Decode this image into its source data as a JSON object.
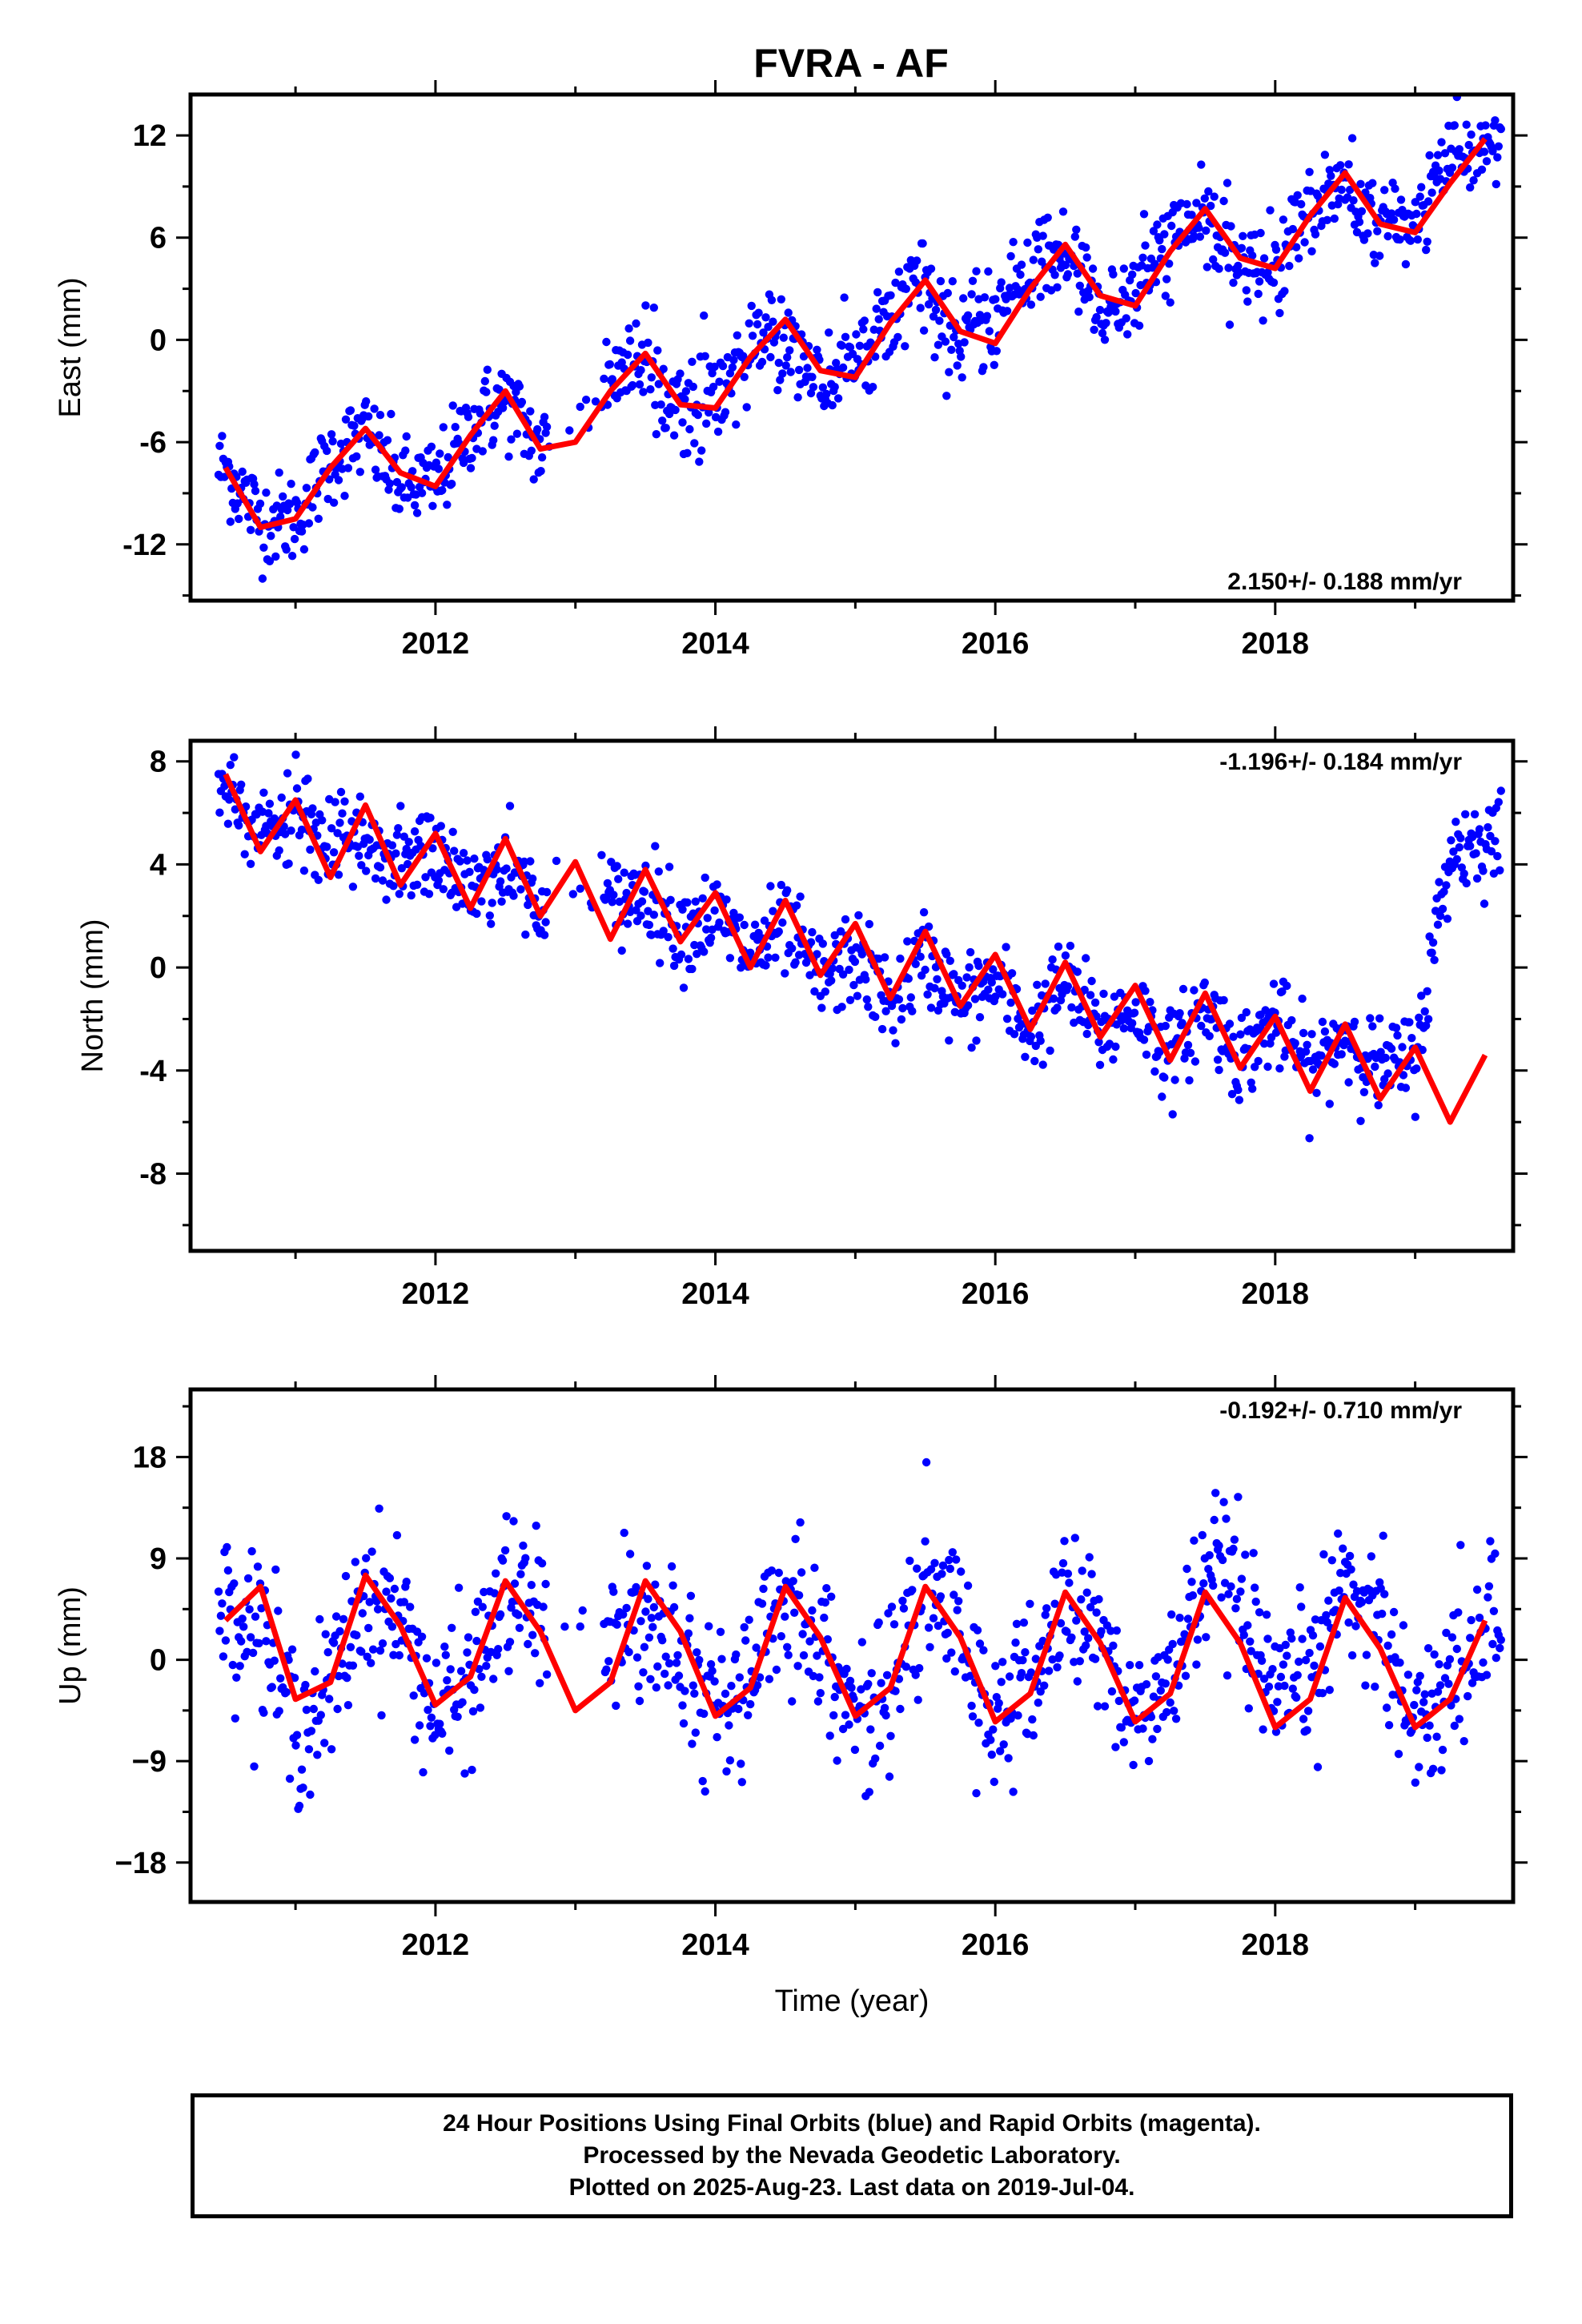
{
  "title": "FVRA - AF",
  "footer": {
    "line1": "24 Hour Positions Using Final Orbits (blue) and Rapid Orbits (magenta).",
    "line2": "Processed by the Nevada Geodetic Laboratory.",
    "line3": "Plotted on 2025-Aug-23. Last data on 2019-Jul-04."
  },
  "colors": {
    "data_points": "#0000ff",
    "model_fit": "#ff0000",
    "frame": "#000000"
  },
  "chart_data": [
    {
      "type": "scatter",
      "title": "FVRA - AF",
      "ylabel": "East (mm)",
      "xlabel": "",
      "xlim": [
        2010.25,
        2019.7
      ],
      "ylim": [
        -15.3,
        14.4
      ],
      "xticks": [
        2012,
        2014,
        2016,
        2018
      ],
      "yticks": [
        -12,
        -6,
        0,
        6,
        12
      ],
      "ytick_labels": [
        "-12",
        "-6",
        "0",
        "6",
        "12"
      ],
      "rate": "2.150+/- 0.188 mm/yr",
      "rate_position": "bottom-right",
      "series": [
        {
          "color": "#0000ff",
          "marker": "dot",
          "x": [
            2010.5,
            2010.75,
            2011.0,
            2011.25,
            2011.5,
            2011.75,
            2012.0,
            2012.25,
            2012.5,
            2012.75,
            2013.3,
            2013.5,
            2013.75,
            2014.0,
            2014.25,
            2014.5,
            2014.75,
            2015.0,
            2015.25,
            2015.5,
            2015.75,
            2016.0,
            2016.25,
            2016.5,
            2016.75,
            2017.0,
            2017.25,
            2017.5,
            2017.75,
            2018.0,
            2018.25,
            2018.5,
            2018.75,
            2019.0,
            2019.25,
            2019.5
          ],
          "y": [
            -7.5,
            -10.5,
            -10.5,
            -7.0,
            -5.5,
            -8.5,
            -8.5,
            -5.0,
            -3.5,
            -6.5,
            -2.0,
            -1.5,
            -4.0,
            -3.5,
            -0.5,
            0.5,
            -2.5,
            -1.5,
            2.0,
            3.0,
            0.0,
            1.0,
            4.5,
            5.0,
            2.0,
            2.5,
            6.0,
            7.0,
            4.0,
            4.5,
            8.0,
            9.0,
            6.5,
            7.0,
            10.5,
            11.5
          ]
        },
        {
          "color": "#ff0000",
          "marker": "line",
          "x": [
            2010.5,
            2010.75,
            2011.0,
            2011.25,
            2011.5,
            2011.75,
            2012.0,
            2012.25,
            2012.5,
            2012.75,
            2013.0,
            2013.25,
            2013.5,
            2013.75,
            2014.0,
            2014.25,
            2014.5,
            2014.75,
            2015.0,
            2015.25,
            2015.5,
            2015.75,
            2016.0,
            2016.25,
            2016.5,
            2016.75,
            2017.0,
            2017.25,
            2017.5,
            2017.75,
            2018.0,
            2018.25,
            2018.5,
            2018.75,
            2019.0,
            2019.25,
            2019.5
          ],
          "y": [
            -7.5,
            -11.0,
            -10.5,
            -7.5,
            -5.2,
            -7.8,
            -8.6,
            -5.6,
            -3.0,
            -6.4,
            -6.0,
            -3.0,
            -0.8,
            -3.8,
            -4.0,
            -1.0,
            1.2,
            -1.8,
            -2.2,
            1.0,
            3.5,
            0.5,
            -0.2,
            3.0,
            5.6,
            2.6,
            2.0,
            5.2,
            7.7,
            4.8,
            4.2,
            7.3,
            9.8,
            6.8,
            6.3,
            9.2,
            11.8
          ]
        }
      ]
    },
    {
      "type": "scatter",
      "ylabel": "North (mm)",
      "xlabel": "",
      "xlim": [
        2010.25,
        2019.7
      ],
      "ylim": [
        -11.0,
        8.8
      ],
      "xticks": [
        2012,
        2014,
        2016,
        2018
      ],
      "yticks": [
        -8,
        -4,
        0,
        4,
        8
      ],
      "ytick_labels": [
        "-8",
        "-4",
        "0",
        "4",
        "8"
      ],
      "rate": "-1.196+/- 0.184 mm/yr",
      "rate_position": "top-right",
      "series": [
        {
          "color": "#0000ff",
          "marker": "dot",
          "x": [
            2010.5,
            2010.75,
            2011.0,
            2011.25,
            2011.5,
            2011.75,
            2012.0,
            2012.25,
            2012.5,
            2012.75,
            2013.3,
            2013.5,
            2013.75,
            2014.0,
            2014.25,
            2014.5,
            2014.75,
            2015.0,
            2015.25,
            2015.5,
            2015.75,
            2016.0,
            2016.25,
            2016.5,
            2016.75,
            2017.0,
            2017.25,
            2017.5,
            2017.75,
            2018.0,
            2018.25,
            2018.5,
            2018.75,
            2019.0,
            2019.25,
            2019.5
          ],
          "y": [
            7.0,
            5.0,
            6.0,
            4.5,
            5.0,
            4.0,
            4.5,
            3.0,
            4.0,
            2.5,
            2.5,
            3.0,
            1.5,
            2.0,
            0.5,
            1.5,
            -0.5,
            0.5,
            -1.5,
            0.5,
            -1.5,
            -0.5,
            -2.5,
            -0.5,
            -2.5,
            -1.5,
            -3.5,
            -1.5,
            -3.5,
            -2.0,
            -4.0,
            -2.5,
            -4.0,
            -3.5,
            4.5,
            5.0
          ]
        },
        {
          "color": "#ff0000",
          "marker": "line",
          "x": [
            2010.5,
            2010.75,
            2011.0,
            2011.25,
            2011.5,
            2011.75,
            2012.0,
            2012.25,
            2012.5,
            2012.75,
            2013.0,
            2013.25,
            2013.5,
            2013.75,
            2014.0,
            2014.25,
            2014.5,
            2014.75,
            2015.0,
            2015.25,
            2015.5,
            2015.75,
            2016.0,
            2016.25,
            2016.5,
            2016.75,
            2017.0,
            2017.25,
            2017.5,
            2017.75,
            2018.0,
            2018.25,
            2018.5,
            2018.75,
            2019.0,
            2019.25,
            2019.5
          ],
          "y": [
            7.5,
            4.5,
            6.5,
            3.5,
            6.3,
            3.2,
            5.2,
            2.3,
            5.0,
            2.0,
            4.1,
            1.1,
            3.8,
            1.0,
            2.9,
            0.0,
            2.6,
            -0.3,
            1.7,
            -1.2,
            1.4,
            -1.5,
            0.5,
            -2.4,
            0.2,
            -2.7,
            -0.7,
            -3.6,
            -1.0,
            -3.9,
            -1.9,
            -4.8,
            -2.2,
            -5.1,
            -3.1,
            -6.0,
            -3.4
          ]
        }
      ]
    },
    {
      "type": "scatter",
      "ylabel": "Up (mm)",
      "xlabel": "Time (year)",
      "xlim": [
        2010.25,
        2019.7
      ],
      "ylim": [
        -21.5,
        24.0
      ],
      "xticks": [
        2012,
        2014,
        2016,
        2018
      ],
      "yticks": [
        -18,
        -9,
        0,
        9,
        18
      ],
      "ytick_labels": [
        "−18",
        "−9",
        "0",
        "9",
        "18"
      ],
      "rate": "-0.192+/- 0.710 mm/yr",
      "rate_position": "top-right",
      "series": [
        {
          "color": "#0000ff",
          "marker": "dot",
          "x": [
            2010.5,
            2010.75,
            2011.0,
            2011.25,
            2011.5,
            2011.75,
            2012.0,
            2012.25,
            2012.5,
            2012.75,
            2013.3,
            2013.5,
            2013.75,
            2014.0,
            2014.25,
            2014.5,
            2014.75,
            2015.0,
            2015.25,
            2015.5,
            2015.75,
            2016.0,
            2016.25,
            2016.5,
            2016.75,
            2017.0,
            2017.25,
            2017.5,
            2017.75,
            2018.0,
            2018.25,
            2018.5,
            2018.75,
            2019.0,
            2019.25,
            2019.5
          ],
          "y": [
            5.0,
            3.0,
            -6.0,
            -3.0,
            6.0,
            4.0,
            -5.0,
            -2.0,
            6.0,
            4.0,
            2.0,
            5.0,
            2.0,
            -5.0,
            -2.0,
            6.0,
            3.0,
            -6.0,
            -2.0,
            6.0,
            3.0,
            -6.0,
            -2.0,
            5.0,
            2.0,
            -6.0,
            -2.0,
            8.0,
            5.0,
            -5.0,
            -1.0,
            7.0,
            4.0,
            -6.0,
            -2.0,
            3.0
          ]
        },
        {
          "color": "#ff0000",
          "marker": "line",
          "x": [
            2010.5,
            2010.75,
            2011.0,
            2011.25,
            2011.5,
            2011.75,
            2012.0,
            2012.25,
            2012.5,
            2012.75,
            2013.0,
            2013.25,
            2013.5,
            2013.75,
            2014.0,
            2014.25,
            2014.5,
            2014.75,
            2015.0,
            2015.25,
            2015.5,
            2015.75,
            2016.0,
            2016.25,
            2016.5,
            2016.75,
            2017.0,
            2017.25,
            2017.5,
            2017.75,
            2018.0,
            2018.25,
            2018.5,
            2018.75,
            2019.0,
            2019.25,
            2019.5
          ],
          "y": [
            3.5,
            6.5,
            -3.5,
            -2.0,
            7.5,
            3.0,
            -4.0,
            -1.5,
            7.0,
            2.5,
            -4.5,
            -2.0,
            7.0,
            2.5,
            -5.0,
            -2.5,
            6.5,
            2.0,
            -5.0,
            -2.5,
            6.5,
            2.0,
            -5.5,
            -3.0,
            6.0,
            1.5,
            -5.5,
            -3.0,
            6.0,
            1.5,
            -6.0,
            -3.5,
            5.5,
            1.0,
            -6.0,
            -3.5,
            3.5
          ]
        }
      ]
    }
  ]
}
